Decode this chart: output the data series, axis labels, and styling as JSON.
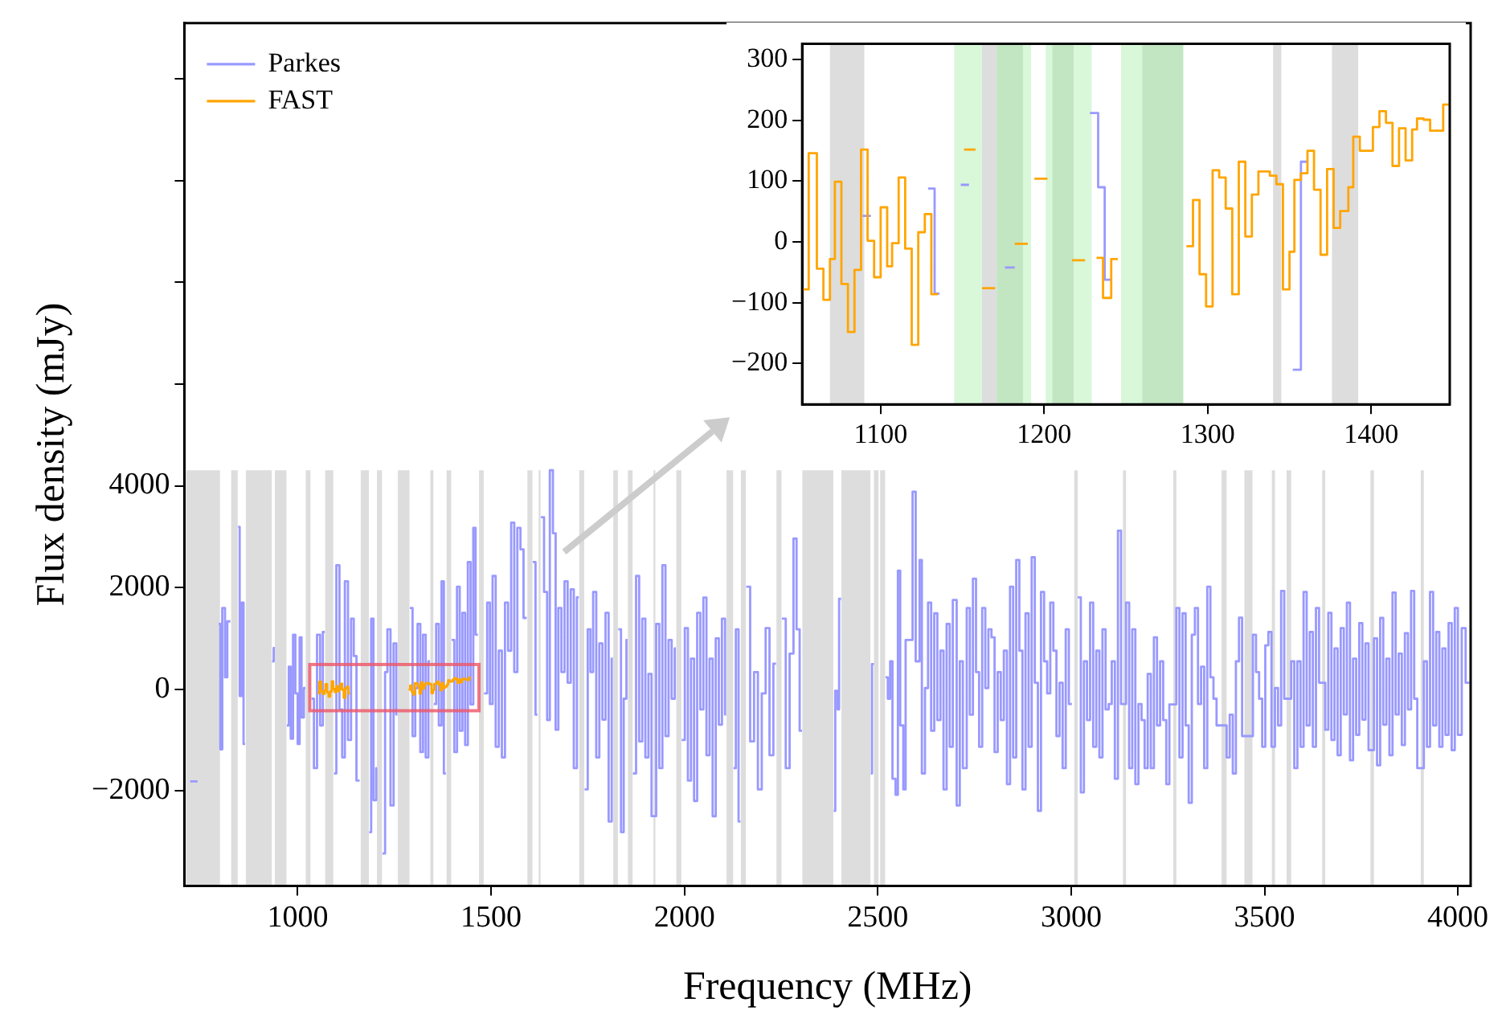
{
  "chart_data": [
    {
      "type": "step",
      "xlabel": "Frequency (MHz)",
      "ylabel": "Flux density (mJy)",
      "xlim": [
        707,
        4033
      ],
      "ylim": [
        -3870,
        13100
      ],
      "xticks": [
        1000,
        1500,
        2000,
        2500,
        3000,
        3500,
        4000
      ],
      "yticks": [
        -2000,
        0,
        2000,
        4000,
        {
          "value": 6000,
          "label": null
        },
        {
          "value": 8000,
          "label": null
        },
        {
          "value": 10000,
          "label": null
        },
        {
          "value": 12000,
          "label": null
        }
      ],
      "grid": false,
      "legend": "top left",
      "bands": [
        {
          "axis": "x",
          "from": 711,
          "to": 799,
          "color": "#dddddd"
        },
        {
          "axis": "x",
          "from": 828,
          "to": 845,
          "color": "#dddddd"
        },
        {
          "axis": "x",
          "from": 866,
          "to": 933,
          "color": "#dddddd"
        },
        {
          "axis": "x",
          "from": 941,
          "to": 971,
          "color": "#dddddd"
        },
        {
          "axis": "x",
          "from": 1021,
          "to": 1033,
          "color": "#dddddd"
        },
        {
          "axis": "x",
          "from": 1071,
          "to": 1092,
          "color": "#dddddd"
        },
        {
          "axis": "x",
          "from": 1163,
          "to": 1184,
          "color": "#dddddd"
        },
        {
          "axis": "x",
          "from": 1205,
          "to": 1218,
          "color": "#dddddd"
        },
        {
          "axis": "x",
          "from": 1259,
          "to": 1289,
          "color": "#dddddd"
        },
        {
          "axis": "x",
          "from": 1343,
          "to": 1351,
          "color": "#dddddd"
        },
        {
          "axis": "x",
          "from": 1385,
          "to": 1397,
          "color": "#dddddd"
        },
        {
          "axis": "x",
          "from": 1469,
          "to": 1481,
          "color": "#dddddd"
        },
        {
          "axis": "x",
          "from": 1594,
          "to": 1607,
          "color": "#dddddd"
        },
        {
          "axis": "x",
          "from": 1623,
          "to": 1628,
          "color": "#dddddd"
        },
        {
          "axis": "x",
          "from": 1728,
          "to": 1741,
          "color": "#dddddd"
        },
        {
          "axis": "x",
          "from": 1816,
          "to": 1828,
          "color": "#dddddd"
        },
        {
          "axis": "x",
          "from": 1854,
          "to": 1866,
          "color": "#dddddd"
        },
        {
          "axis": "x",
          "from": 1920,
          "to": 1925,
          "color": "#dddddd"
        },
        {
          "axis": "x",
          "from": 1979,
          "to": 1992,
          "color": "#dddddd"
        },
        {
          "axis": "x",
          "from": 2109,
          "to": 2126,
          "color": "#dddddd"
        },
        {
          "axis": "x",
          "from": 2146,
          "to": 2159,
          "color": "#dddddd"
        },
        {
          "axis": "x",
          "from": 2238,
          "to": 2251,
          "color": "#dddddd"
        },
        {
          "axis": "x",
          "from": 2305,
          "to": 2385,
          "color": "#dddddd"
        },
        {
          "axis": "x",
          "from": 2406,
          "to": 2481,
          "color": "#dddddd"
        },
        {
          "axis": "x",
          "from": 2490,
          "to": 2502,
          "color": "#dddddd"
        },
        {
          "axis": "x",
          "from": 2506,
          "to": 2519,
          "color": "#dddddd"
        },
        {
          "axis": "x",
          "from": 3008,
          "to": 3017,
          "color": "#dddddd"
        },
        {
          "axis": "x",
          "from": 3134,
          "to": 3142,
          "color": "#dddddd"
        },
        {
          "axis": "x",
          "from": 3264,
          "to": 3272,
          "color": "#dddddd"
        },
        {
          "axis": "x",
          "from": 3389,
          "to": 3402,
          "color": "#dddddd"
        },
        {
          "axis": "x",
          "from": 3448,
          "to": 3469,
          "color": "#dddddd"
        },
        {
          "axis": "x",
          "from": 3519,
          "to": 3527,
          "color": "#dddddd"
        },
        {
          "axis": "x",
          "from": 3557,
          "to": 3569,
          "color": "#dddddd"
        },
        {
          "axis": "x",
          "from": 3649,
          "to": 3657,
          "color": "#dddddd"
        },
        {
          "axis": "x",
          "from": 3774,
          "to": 3783,
          "color": "#dddddd"
        },
        {
          "axis": "x",
          "from": 3904,
          "to": 3912,
          "color": "#dddddd"
        }
      ],
      "series": [
        {
          "name": "Parkes",
          "color": "#9999ff",
          "x": [
            722,
            741,
            780,
            796,
            800,
            805,
            812,
            818,
            826,
            835,
            846,
            850,
            855,
            860,
            864,
            875,
            934,
            938,
            941,
            955,
            972,
            977,
            982,
            988,
            994,
            1000,
            1005,
            1010,
            1016,
            1020,
            1027,
            1036,
            1042,
            1050,
            1058,
            1065,
            1070,
            1080,
            1094,
            1100,
            1108,
            1115,
            1122,
            1130,
            1138,
            1145,
            1152,
            1160,
            1170,
            1185,
            1190,
            1196,
            1203,
            1205,
            1210,
            1219,
            1226,
            1232,
            1240,
            1248,
            1255,
            1258,
            1270,
            1290,
            1297,
            1304,
            1310,
            1317,
            1324,
            1331,
            1338,
            1342,
            1347,
            1352,
            1358,
            1365,
            1372,
            1378,
            1383,
            1390,
            1398,
            1405,
            1412,
            1419,
            1426,
            1433,
            1440,
            1447,
            1454,
            1460,
            1466,
            1475,
            1482,
            1490,
            1497,
            1504,
            1512,
            1520,
            1528,
            1536,
            1544,
            1552,
            1560,
            1568,
            1576,
            1584,
            1592,
            1600,
            1608,
            1615,
            1620,
            1625,
            1629,
            1637,
            1645,
            1652,
            1660,
            1667,
            1674,
            1682,
            1690,
            1698,
            1706,
            1714,
            1722,
            1727,
            1734,
            1742,
            1750,
            1757,
            1764,
            1772,
            1780,
            1788,
            1796,
            1804,
            1812,
            1815,
            1822,
            1829,
            1836,
            1843,
            1850,
            1853,
            1860,
            1867,
            1875,
            1883,
            1891,
            1899,
            1907,
            1915,
            1927,
            1935,
            1943,
            1951,
            1959,
            1967,
            1975,
            1978,
            1985,
            1993,
            2001,
            2009,
            2017,
            2025,
            2033,
            2041,
            2049,
            2057,
            2065,
            2073,
            2081,
            2089,
            2097,
            2105,
            2108,
            2115,
            2127,
            2133,
            2140,
            2145,
            2150,
            2160,
            2170,
            2180,
            2190,
            2200,
            2210,
            2220,
            2230,
            2237,
            2244,
            2252,
            2262,
            2272,
            2282,
            2290,
            2298,
            2304,
            2310,
            2386,
            2390,
            2396,
            2400,
            2405,
            2440,
            2482,
            2485,
            2490,
            2496,
            2520,
            2526,
            2532,
            2538,
            2546,
            2552,
            2558,
            2566,
            2572,
            2590,
            2598,
            2608,
            2614,
            2622,
            2630,
            2638,
            2646,
            2654,
            2662,
            2670,
            2678,
            2686,
            2694,
            2704,
            2712,
            2720,
            2730,
            2738,
            2746,
            2754,
            2762,
            2770,
            2778,
            2786,
            2794,
            2802,
            2810,
            2818,
            2826,
            2834,
            2842,
            2850,
            2858,
            2866,
            2874,
            2882,
            2890,
            2898,
            2906,
            2914,
            2922,
            2930,
            2938,
            2946,
            2954,
            2962,
            2970,
            2978,
            2986,
            2994,
            3002,
            3008,
            3017,
            3025,
            3033,
            3041,
            3049,
            3057,
            3065,
            3073,
            3081,
            3089,
            3097,
            3105,
            3113,
            3121,
            3129,
            3134,
            3142,
            3150,
            3158,
            3166,
            3174,
            3182,
            3190,
            3198,
            3206,
            3214,
            3222,
            3230,
            3238,
            3246,
            3254,
            3262,
            3272,
            3280,
            3288,
            3296,
            3304,
            3312,
            3320,
            3328,
            3336,
            3344,
            3352,
            3360,
            3368,
            3376,
            3384,
            3402,
            3410,
            3418,
            3426,
            3434,
            3442,
            3448,
            3470,
            3478,
            3486,
            3494,
            3502,
            3510,
            3518,
            3527,
            3535,
            3543,
            3551,
            3557,
            3569,
            3577,
            3585,
            3593,
            3601,
            3609,
            3617,
            3625,
            3633,
            3641,
            3649,
            3657,
            3665,
            3673,
            3681,
            3689,
            3697,
            3705,
            3713,
            3721,
            3729,
            3737,
            3745,
            3753,
            3761,
            3769,
            3774,
            3783,
            3791,
            3799,
            3807,
            3815,
            3823,
            3831,
            3839,
            3847,
            3855,
            3863,
            3871,
            3879,
            3887,
            3895,
            3903,
            3912,
            3920,
            3928,
            3936,
            3944,
            3952,
            3960,
            3968,
            3976,
            3984,
            3992,
            4000,
            4010,
            4020,
            4030
          ],
          "values": [
            -1816,
            -1816,
            null,
            1281,
            -1186,
            1596,
            231,
            1333,
            1333,
            null,
            3192,
            -136,
            1700,
            -1081,
            -1081,
            null,
            546,
            808,
            808,
            null,
            -714,
            441,
            -976,
            1071,
            -84,
            -1081,
            1018,
            -556,
            21,
            21,
            null,
            -189,
            -1554,
            1071,
            -714,
            1123,
            1123,
            null,
            -1659,
            2436,
            -399,
            -1344,
            2121,
            -1000,
            1386,
            651,
            -1800,
            -1800,
            null,
            -2814,
            1386,
            -2184,
            -1554,
            -1554,
            null,
            -3234,
            336,
            1176,
            -2289,
            900,
            -500,
            -500,
            null,
            1596,
            -924,
            21,
            1281,
            -1239,
            1071,
            -1344,
            546,
            546,
            null,
            -294,
            1281,
            -714,
            2121,
            -1659,
            -1659,
            null,
            966,
            -1239,
            2016,
            -819,
            1500,
            -1100,
            2500,
            -300,
            3171,
            1071,
            1071,
            null,
            -84,
            1700,
            -294,
            2226,
            -1134,
            756,
            -1344,
            1701,
            756,
            3276,
            336,
            3171,
            2751,
            1400,
            1400,
            null,
            2500,
            -504,
            -504,
            null,
            3381,
            1911,
            -609,
            4305,
            3066,
            -800,
            1596,
            336,
            2121,
            126,
            1963,
            -1554,
            1806,
            1806,
            null,
            -1974,
            1176,
            336,
            1911,
            -1344,
            900,
            -600,
            1500,
            -2604,
            600,
            600,
            null,
            1176,
            -2814,
            -189,
            966,
            966,
            null,
            -1659,
            2226,
            -1029,
            1386,
            -1344,
            300,
            -2499,
            1281,
            -1554,
            2436,
            -924,
            966,
            -189,
            800,
            800,
            null,
            -1000,
            1200,
            -1800,
            600,
            -2200,
            1500,
            -400,
            1800,
            -1300,
            600,
            -2500,
            1000,
            -700,
            1386,
            -500,
            -500,
            null,
            -1554,
            1176,
            -2604,
            -2604,
            null,
            2016,
            -1029,
            336,
            -1974,
            -84,
            1200,
            -1300,
            500,
            500,
            null,
            1386,
            -1554,
            700,
            2961,
            1176,
            -819,
            -819,
            null,
            -2394,
            -31,
            -399,
            1775,
            1775,
            null,
            -1659,
            494,
            494,
            null,
            231,
            -189,
            546,
            -1764,
            -2079,
            2331,
            -714,
            -1974,
            966,
            3885,
            546,
            2541,
            -1659,
            21,
            1701,
            -819,
            1491,
            -609,
            756,
            -1974,
            1281,
            -1134,
            1753,
            -2289,
            546,
            -1554,
            1596,
            -504,
            2173,
            336,
            -1134,
            1596,
            21,
            1176,
            1018,
            -1239,
            336,
            -609,
            756,
            -1869,
            2016,
            -1344,
            2541,
            756,
            -1974,
            1491,
            -1134,
            2593,
            126,
            -2394,
            1911,
            546,
            -84,
            1701,
            756,
            -924,
            126,
            -1554,
            1176,
            -294,
            -294,
            null,
            1806,
            -2031,
            546,
            -609,
            1701,
            -1134,
            756,
            -1344,
            1176,
            -399,
            -294,
            546,
            -1764,
            3118,
            -294,
            -294,
            1701,
            -1554,
            1176,
            -1869,
            -294,
            -609,
            -1554,
            300,
            -1554,
            1018,
            -714,
            546,
            -609,
            -1869,
            -300,
            -300,
            1596,
            -1344,
            1491,
            -714,
            -2236,
            1071,
            1596,
            -294,
            441,
            -1554,
            2016,
            231,
            -189,
            -714,
            -714,
            -1344,
            -504,
            -1659,
            546,
            1407,
            -924,
            -924,
            1071,
            336,
            -189,
            -1134,
            861,
            1123,
            -1134,
            21,
            -714,
            1932,
            -189,
            -189,
            546,
            -1554,
            546,
            -1134,
            1911,
            -714,
            1123,
            -1134,
            1596,
            126,
            126,
            -800,
            1500,
            -1000,
            800,
            -1300,
            1200,
            -500,
            1700,
            -1400,
            600,
            -900,
            1300,
            -600,
            900,
            -1200,
            -1200,
            1000,
            -1500,
            1400,
            -700,
            600,
            -1300,
            1900,
            -500,
            700,
            -1100,
            1100,
            -400,
            1932,
            -189,
            -1554,
            -1554,
            546,
            -1134,
            1911,
            -714,
            1123,
            -1134,
            800,
            -900,
            1300,
            -1200,
            1596,
            -900,
            1200,
            126,
            126
          ]
        },
        {
          "name": "FAST",
          "color": "#ffa500",
          "x": [
            1052,
            1056,
            1061,
            1065,
            1069,
            1072,
            1076,
            1080,
            1084,
            1088,
            1092,
            1096,
            1100,
            1104,
            1107,
            1111,
            1115,
            1119,
            1123,
            1127,
            1131,
            1135,
            1140,
            1287,
            1291,
            1295,
            1299,
            1303,
            1307,
            1311,
            1315,
            1319,
            1323,
            1327,
            1331,
            1338,
            1342,
            1346,
            1350,
            1353,
            1357,
            1361,
            1365,
            1369,
            1373,
            1377,
            1381,
            1386,
            1389,
            1393,
            1401,
            1405,
            1409,
            1413,
            1417,
            1421,
            1425,
            1428,
            1432,
            1436,
            1444,
            1448
          ],
          "values": [
            -78,
            146,
            -44,
            -95,
            -28,
            99,
            -69,
            -148,
            -46,
            152,
            2,
            -58,
            57,
            -40,
            -2,
            106,
            -11,
            -169,
            16,
            46,
            -86,
            -86,
            null,
            -7,
            69,
            -53,
            -106,
            118,
            106,
            55,
            -86,
            132,
            9,
            78,
            116,
            109,
            95,
            -78,
            -16,
            102,
            113,
            150,
            86,
            -21,
            120,
            23,
            51,
            90,
            173,
            150,
            189,
            215,
            196,
            125,
            187,
            134,
            185,
            203,
            201,
            183,
            226,
            226
          ]
        }
      ]
    },
    {
      "type": "step",
      "xlim": [
        1052,
        1448
      ],
      "ylim": [
        -267,
        326
      ],
      "xticks": [
        1100,
        1200,
        1300,
        1400
      ],
      "yticks": [
        -200,
        -100,
        0,
        100,
        200,
        300
      ],
      "grid": false,
      "bands": [
        {
          "axis": "x",
          "from": 1069,
          "to": 1090,
          "color": "#dddddd"
        },
        {
          "axis": "x",
          "from": 1145,
          "to": 1192,
          "color": "#d9f7d9"
        },
        {
          "axis": "x",
          "from": 1201,
          "to": 1229,
          "color": "#d9f7d9"
        },
        {
          "axis": "x",
          "from": 1247,
          "to": 1285,
          "color": "#d9f7d9"
        },
        {
          "axis": "x",
          "from": 1162,
          "to": 1171,
          "color": "#dddddd"
        },
        {
          "axis": "x",
          "from": 1171,
          "to": 1187,
          "color": "#c2e6c2"
        },
        {
          "axis": "x",
          "from": 1205,
          "to": 1218,
          "color": "#c2e6c2"
        },
        {
          "axis": "x",
          "from": 1260,
          "to": 1285,
          "color": "#c2e6c2"
        },
        {
          "axis": "x",
          "from": 1340,
          "to": 1345,
          "color": "#dddddd"
        },
        {
          "axis": "x",
          "from": 1376,
          "to": 1392,
          "color": "#dddddd"
        }
      ],
      "series": [
        {
          "color": "#9999ff",
          "x": [
            1089,
            1094,
            1095,
            1129,
            1133,
            1136,
            1137,
            1149,
            1154,
            1155,
            1176,
            1182,
            1183,
            1228,
            1233,
            1237,
            1241,
            1242,
            1352,
            1357,
            1361
          ],
          "values": [
            43,
            43,
            null,
            88,
            -85,
            -85,
            null,
            94,
            94,
            null,
            -42,
            -42,
            null,
            212,
            90,
            -62,
            -62,
            null,
            -210,
            132,
            132
          ]
        },
        {
          "color": "#ffa500",
          "x": [
            1052,
            1056,
            1061,
            1065,
            1069,
            1072,
            1076,
            1080,
            1084,
            1088,
            1092,
            1096,
            1100,
            1104,
            1107,
            1111,
            1115,
            1119,
            1123,
            1127,
            1131,
            1135,
            1140,
            1151,
            1158,
            1160,
            1162,
            1170,
            1171,
            1182,
            1190,
            1191,
            1194,
            1202,
            1203,
            1217,
            1225,
            1227,
            1232,
            1236,
            1241,
            1245,
            1260,
            1287,
            1291,
            1295,
            1299,
            1303,
            1307,
            1311,
            1315,
            1319,
            1323,
            1327,
            1331,
            1338,
            1342,
            1346,
            1350,
            1353,
            1357,
            1361,
            1365,
            1369,
            1373,
            1377,
            1381,
            1386,
            1389,
            1393,
            1401,
            1405,
            1409,
            1413,
            1417,
            1421,
            1425,
            1428,
            1432,
            1436,
            1444,
            1448
          ],
          "values": [
            -78,
            146,
            -44,
            -95,
            -28,
            99,
            -69,
            -148,
            -46,
            152,
            2,
            -58,
            57,
            -40,
            -2,
            106,
            -11,
            -169,
            16,
            46,
            -86,
            -86,
            null,
            152,
            152,
            null,
            -76,
            -76,
            null,
            -3,
            -3,
            null,
            104,
            104,
            null,
            -30,
            -30,
            null,
            -26,
            -92,
            -28,
            -28,
            null,
            -7,
            69,
            -53,
            -106,
            118,
            106,
            55,
            -86,
            132,
            9,
            78,
            116,
            109,
            95,
            -78,
            -16,
            102,
            113,
            150,
            86,
            -21,
            120,
            23,
            51,
            90,
            173,
            150,
            189,
            215,
            196,
            125,
            187,
            134,
            185,
            203,
            201,
            183,
            226,
            226
          ]
        }
      ]
    }
  ]
}
